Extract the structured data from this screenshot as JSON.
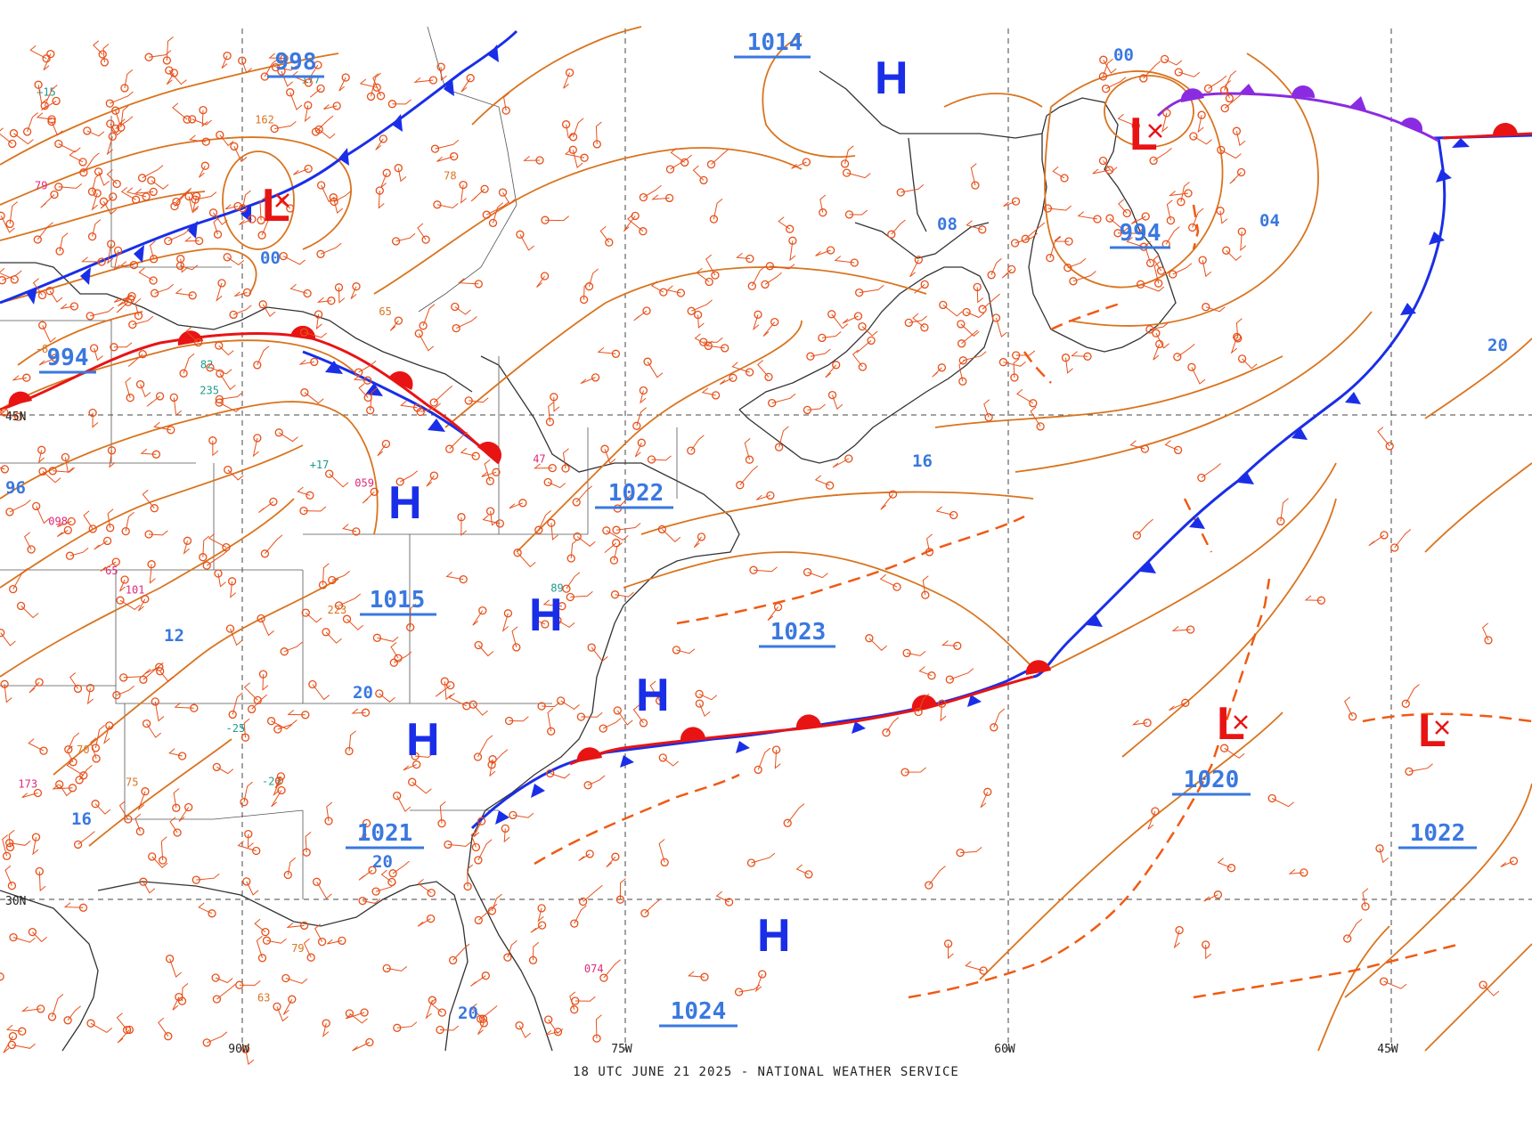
{
  "footer": "18 UTC JUNE 21 2025 - NATIONAL WEATHER SERVICE",
  "colors": {
    "isobar": "#d9741e",
    "cold_front": "#1a2ee8",
    "warm_front": "#e81414",
    "occluded_front": "#8a2be2",
    "trough": "#f05a14",
    "high_center": "#1a2ee8",
    "low_center": "#e81414",
    "isobar_label": "#3a78e0",
    "coast": "#333333",
    "grid": "#444444"
  },
  "axes": {
    "longitudes": [
      "90W",
      "75W",
      "60W",
      "45W"
    ],
    "latitudes": [
      "45N",
      "30N"
    ]
  },
  "highs": [
    "H",
    "H",
    "H",
    "H",
    "H",
    "H"
  ],
  "lows": [
    "L",
    "L",
    "L",
    "L"
  ],
  "isobar_labels": [
    "998",
    "1014",
    "994",
    "994",
    "1022",
    "1015",
    "1023",
    "1021",
    "1020",
    "1022",
    "1024"
  ],
  "short_labels": [
    "00",
    "00",
    "08",
    "04",
    "20",
    "96",
    "16",
    "12",
    "20",
    "16",
    "20",
    "20"
  ],
  "station_samples": [
    "63",
    "101",
    "+15",
    "78",
    "074",
    "-25",
    "70",
    "098",
    "-20",
    "65",
    "059",
    "+17",
    "79",
    "47",
    "89",
    "162",
    "65",
    "177",
    "75",
    "173",
    "82",
    "223",
    "79",
    "235",
    "-8"
  ]
}
